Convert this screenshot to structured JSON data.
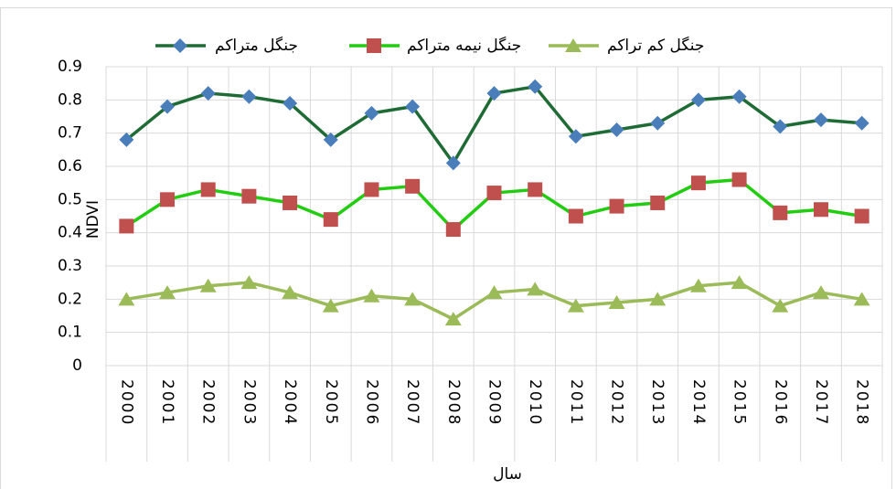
{
  "chart_data": {
    "type": "line",
    "categories": [
      "2000",
      "2001",
      "2002",
      "2003",
      "2004",
      "2005",
      "2006",
      "2007",
      "2008",
      "2009",
      "2010",
      "2011",
      "2012",
      "2013",
      "2014",
      "2015",
      "2016",
      "2017",
      "2018"
    ],
    "series": [
      {
        "name": "جنگل متراکم",
        "color": "#1e6b35",
        "marker": "diamond",
        "marker_color": "#4a7ebb",
        "values": [
          0.68,
          0.78,
          0.82,
          0.81,
          0.79,
          0.68,
          0.76,
          0.78,
          0.61,
          0.82,
          0.84,
          0.69,
          0.71,
          0.73,
          0.8,
          0.81,
          0.72,
          0.74,
          0.73
        ]
      },
      {
        "name": "جنگل نیمه متراکم",
        "color": "#22cc11",
        "marker": "square",
        "marker_color": "#c0504d",
        "values": [
          0.42,
          0.5,
          0.53,
          0.51,
          0.49,
          0.44,
          0.53,
          0.54,
          0.41,
          0.52,
          0.53,
          0.45,
          0.48,
          0.49,
          0.55,
          0.56,
          0.46,
          0.47,
          0.45
        ]
      },
      {
        "name": "جنگل کم تراکم",
        "color": "#9bbb59",
        "marker": "triangle",
        "marker_color": "#9bbb59",
        "values": [
          0.2,
          0.22,
          0.24,
          0.25,
          0.22,
          0.18,
          0.21,
          0.2,
          0.14,
          0.22,
          0.23,
          0.18,
          0.19,
          0.2,
          0.24,
          0.25,
          0.18,
          0.22,
          0.2
        ]
      }
    ],
    "x_label": "سال",
    "y_label": "NDVI",
    "ylim": [
      0,
      0.9
    ],
    "yticks": [
      0,
      0.1,
      0.2,
      0.3,
      0.4,
      0.5,
      0.6,
      0.7,
      0.8,
      0.9
    ],
    "grid": true,
    "legend": "top"
  }
}
